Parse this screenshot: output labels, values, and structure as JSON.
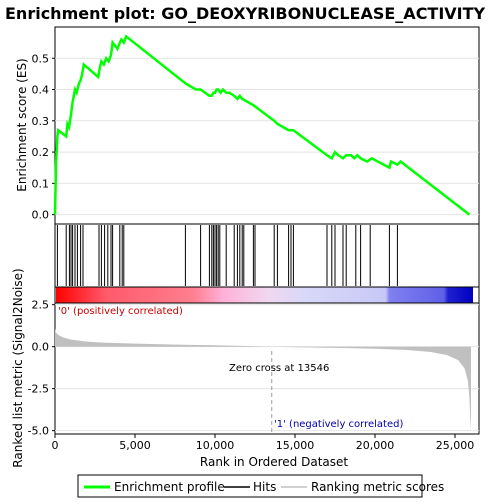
{
  "title": "Enrichment plot: GO_DEOXYRIBONUCLEASE_ACTIVITY",
  "colors": {
    "es_line": "#00ff00",
    "hits": "#000000",
    "metric_fill": "#c0c0c0",
    "pos_label": "#cc0000",
    "neg_label": "#0000aa",
    "zero_cross_line": "#a0a0a0"
  },
  "chart_data": [
    {
      "type": "line",
      "name": "enrichment-score-panel",
      "ylabel": "Enrichment score (ES)",
      "xlim": [
        0,
        26500
      ],
      "ylim": [
        -0.03,
        0.6
      ],
      "yticks": [
        "0.0",
        "0.1",
        "0.2",
        "0.3",
        "0.4",
        "0.5"
      ],
      "grid": true,
      "series": [
        {
          "name": "Enrichment profile",
          "x": [
            0,
            60,
            150,
            200,
            700,
            780,
            880,
            1000,
            1100,
            1250,
            1350,
            1500,
            1600,
            1700,
            1800,
            2700,
            2800,
            2900,
            3050,
            3200,
            3350,
            3500,
            3600,
            3750,
            3900,
            4050,
            4150,
            4300,
            4450,
            7900,
            8150,
            8800,
            9100,
            9650,
            9800,
            9900,
            10000,
            10100,
            10200,
            10350,
            10500,
            10700,
            10900,
            11200,
            11400,
            11550,
            11700,
            12400,
            13700,
            13900,
            14600,
            14900,
            17000,
            17300,
            17500,
            17700,
            18000,
            18200,
            18500,
            18700,
            18900,
            19100,
            19500,
            19800,
            20900,
            21000,
            21400,
            21600,
            25900
          ],
          "y": [
            0.0,
            0.16,
            0.25,
            0.27,
            0.25,
            0.29,
            0.28,
            0.32,
            0.36,
            0.4,
            0.39,
            0.42,
            0.43,
            0.45,
            0.48,
            0.44,
            0.47,
            0.49,
            0.48,
            0.5,
            0.49,
            0.51,
            0.55,
            0.54,
            0.53,
            0.55,
            0.56,
            0.55,
            0.57,
            0.43,
            0.42,
            0.4,
            0.4,
            0.38,
            0.38,
            0.39,
            0.39,
            0.4,
            0.4,
            0.39,
            0.4,
            0.39,
            0.39,
            0.38,
            0.37,
            0.38,
            0.37,
            0.35,
            0.3,
            0.29,
            0.27,
            0.27,
            0.19,
            0.18,
            0.2,
            0.19,
            0.18,
            0.19,
            0.19,
            0.18,
            0.19,
            0.18,
            0.17,
            0.18,
            0.15,
            0.17,
            0.16,
            0.17,
            0.0
          ]
        }
      ]
    },
    {
      "type": "hits",
      "name": "hits-panel",
      "xlim": [
        0,
        26500
      ],
      "hit_ranks": [
        150,
        700,
        900,
        1000,
        1100,
        1250,
        1400,
        1600,
        1750,
        2750,
        2900,
        3100,
        3300,
        3500,
        3600,
        4050,
        4200,
        4300,
        8150,
        9100,
        9650,
        9800,
        9900,
        10000,
        10100,
        10200,
        10300,
        10700,
        11200,
        11400,
        11550,
        11700,
        11800,
        12400,
        12500,
        13700,
        13900,
        14600,
        14750,
        14900,
        17000,
        17300,
        17500,
        18000,
        18200,
        18800,
        19100,
        19700,
        20900,
        21400
      ]
    },
    {
      "type": "area",
      "name": "ranked-metric-panel",
      "xlabel": "Rank in Ordered Dataset",
      "ylabel": "Ranked list metric (Signal2Noise)",
      "xlim": [
        0,
        26500
      ],
      "ylim": [
        -5.2,
        2.6
      ],
      "xticks": [
        "0",
        "5,000",
        "10,000",
        "15,000",
        "20,000",
        "25,000"
      ],
      "yticks": [
        "2.5",
        "0.0",
        "-2.5",
        "-5.0"
      ],
      "zero_cross": 13546,
      "series": [
        {
          "name": "Ranking metric scores",
          "x": [
            0,
            50,
            200,
            500,
            1000,
            2000,
            3000,
            5000,
            8000,
            10000,
            12000,
            13546,
            15000,
            18000,
            20000,
            22000,
            23500,
            24500,
            25200,
            25600,
            25800,
            25900,
            25950,
            26000
          ],
          "y": [
            1.1,
            0.85,
            0.7,
            0.55,
            0.42,
            0.3,
            0.24,
            0.18,
            0.12,
            0.08,
            0.04,
            0.0,
            -0.04,
            -0.08,
            -0.12,
            -0.2,
            -0.32,
            -0.5,
            -0.8,
            -1.3,
            -2.0,
            -3.0,
            -4.2,
            -5.0
          ]
        }
      ]
    }
  ],
  "pos_label": "'0' (positively correlated)",
  "neg_label": "'1' (negatively correlated)",
  "zero_cross_label": "Zero cross at 13546",
  "legend": {
    "items": [
      {
        "label": "Enrichment profile"
      },
      {
        "label": "Hits"
      },
      {
        "label": "Ranking metric scores"
      }
    ]
  }
}
